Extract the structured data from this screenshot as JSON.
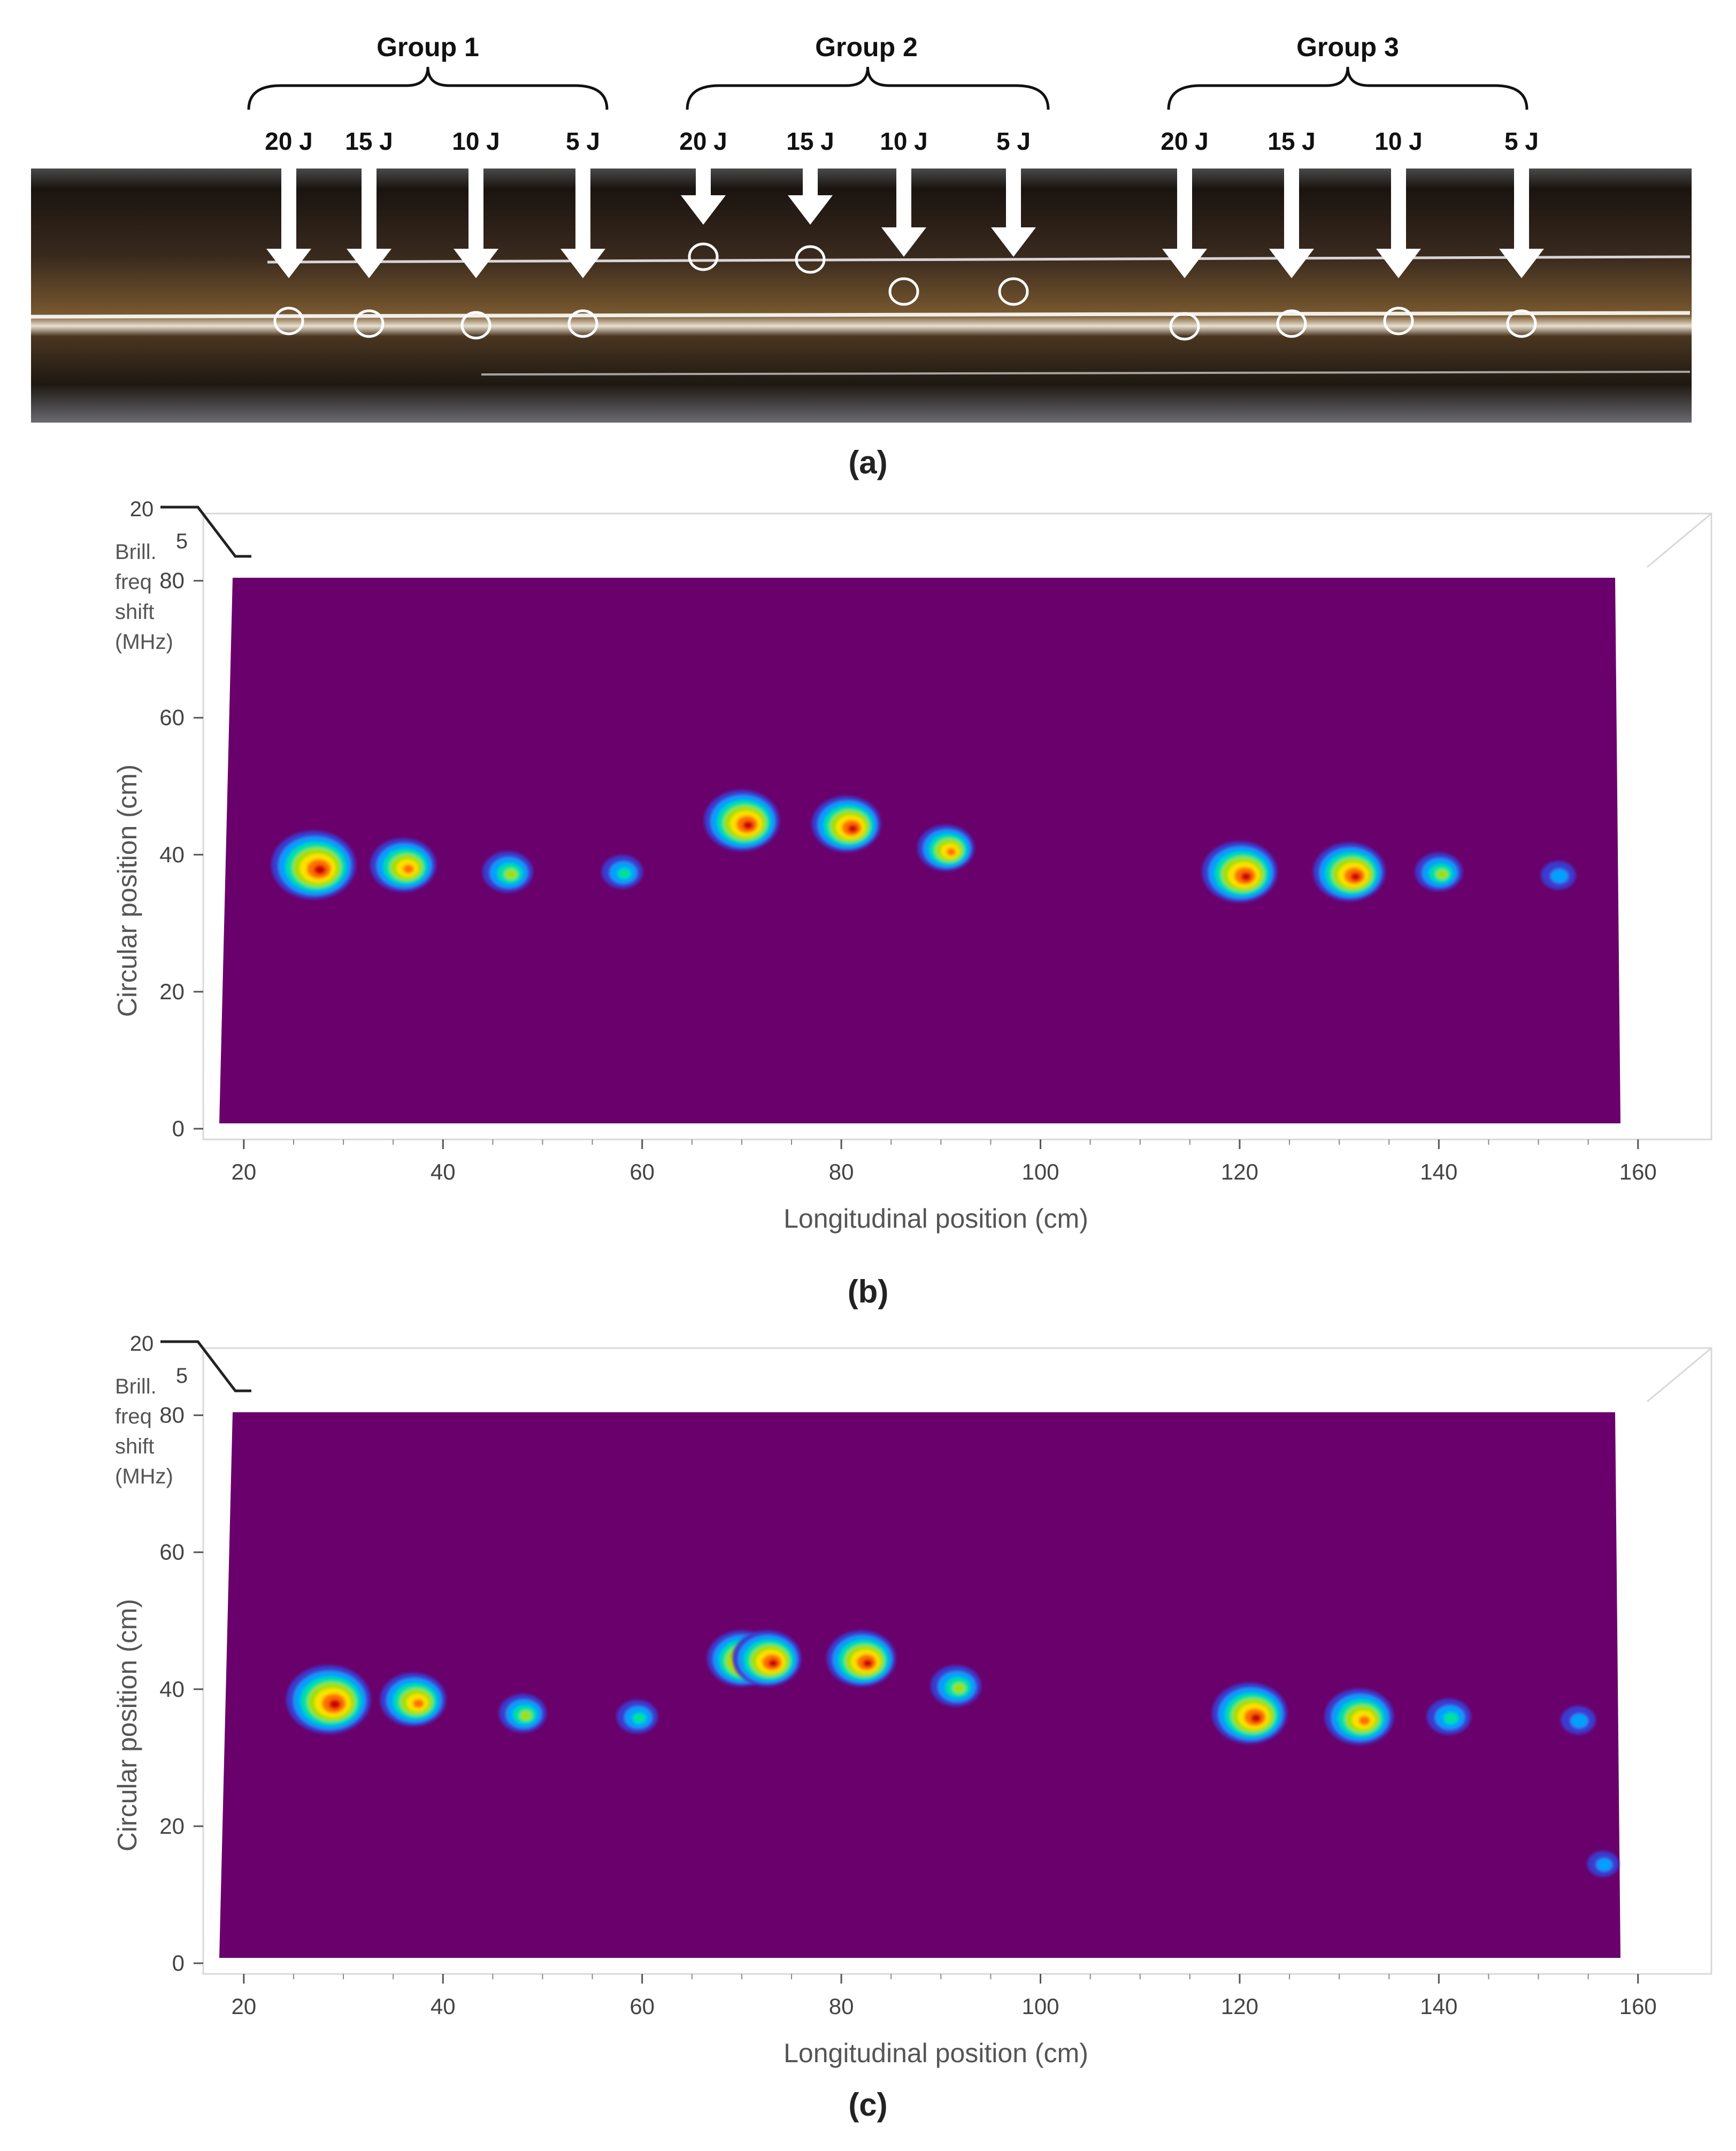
{
  "panel_labels": [
    "(a)",
    "(b)",
    "(c)"
  ],
  "photo": {
    "groups": [
      {
        "label": "Group 1",
        "impacts": [
          "20 J",
          "15 J",
          "10 J",
          "5 J"
        ]
      },
      {
        "label": "Group 2",
        "impacts": [
          "20 J",
          "15 J",
          "10 J",
          "5 J"
        ]
      },
      {
        "label": "Group 3",
        "impacts": [
          "20 J",
          "15 J",
          "10 J",
          "5 J"
        ]
      }
    ],
    "colors": {
      "pipe": "#2a201a",
      "marking": "#ffffff",
      "arrow": "#ffffff"
    }
  },
  "colorbar_label": "Brill. freq shift (MHz)",
  "colorbar_ticks": [
    "20",
    "5"
  ],
  "chart_data": [
    {
      "panel": "(b)",
      "type": "heatmap",
      "xlabel": "Longitudinal position (cm)",
      "ylabel": "Circular position (cm)",
      "xlim": [
        17,
        162
      ],
      "ylim": [
        0,
        82
      ],
      "xticks": [
        20,
        40,
        60,
        80,
        100,
        120,
        140,
        160
      ],
      "yticks": [
        0,
        20,
        40,
        60,
        80
      ],
      "background_color": "#6a006b",
      "hotspots": [
        {
          "x": 27,
          "y": 38.5,
          "intensity": 1.0,
          "size": 1.0
        },
        {
          "x": 36,
          "y": 38.5,
          "intensity": 0.85,
          "size": 0.7
        },
        {
          "x": 46.5,
          "y": 37.5,
          "intensity": 0.6,
          "size": 0.45
        },
        {
          "x": 58,
          "y": 37.5,
          "intensity": 0.4,
          "size": 0.3
        },
        {
          "x": 70,
          "y": 45,
          "intensity": 1.0,
          "size": 0.85
        },
        {
          "x": 80.5,
          "y": 44.5,
          "intensity": 0.95,
          "size": 0.75
        },
        {
          "x": 90.5,
          "y": 41,
          "intensity": 0.85,
          "size": 0.55
        },
        {
          "x": 120,
          "y": 37.5,
          "intensity": 1.0,
          "size": 0.85
        },
        {
          "x": 131,
          "y": 37.5,
          "intensity": 0.95,
          "size": 0.8
        },
        {
          "x": 140,
          "y": 37.5,
          "intensity": 0.5,
          "size": 0.4
        },
        {
          "x": 152,
          "y": 37,
          "intensity": 0.25,
          "size": 0.2
        }
      ]
    },
    {
      "panel": "(c)",
      "type": "heatmap",
      "xlabel": "Longitudinal position (cm)",
      "ylabel": "Circular position (cm)",
      "xlim": [
        17,
        162
      ],
      "ylim": [
        0,
        82
      ],
      "xticks": [
        20,
        40,
        60,
        80,
        100,
        120,
        140,
        160
      ],
      "yticks": [
        0,
        20,
        40,
        60,
        80
      ],
      "background_color": "#6a006b",
      "hotspots": [
        {
          "x": 28.5,
          "y": 38.5,
          "intensity": 1.0,
          "size": 1.0
        },
        {
          "x": 37,
          "y": 38.5,
          "intensity": 0.9,
          "size": 0.7
        },
        {
          "x": 48,
          "y": 36.5,
          "intensity": 0.55,
          "size": 0.4
        },
        {
          "x": 59.5,
          "y": 36,
          "intensity": 0.4,
          "size": 0.3
        },
        {
          "x": 70,
          "y": 44.5,
          "intensity": 1.0,
          "size": 0.75
        },
        {
          "x": 72.5,
          "y": 44.5,
          "intensity": 1.0,
          "size": 0.75
        },
        {
          "x": 82,
          "y": 44.5,
          "intensity": 0.95,
          "size": 0.75
        },
        {
          "x": 91.5,
          "y": 40.5,
          "intensity": 0.6,
          "size": 0.45
        },
        {
          "x": 121,
          "y": 36.5,
          "intensity": 1.0,
          "size": 0.85
        },
        {
          "x": 132,
          "y": 36,
          "intensity": 0.9,
          "size": 0.75
        },
        {
          "x": 141,
          "y": 36,
          "intensity": 0.45,
          "size": 0.35
        },
        {
          "x": 154,
          "y": 35.5,
          "intensity": 0.3,
          "size": 0.2
        },
        {
          "x": 156.5,
          "y": 14.5,
          "intensity": 0.25,
          "size": 0.15
        }
      ]
    }
  ]
}
